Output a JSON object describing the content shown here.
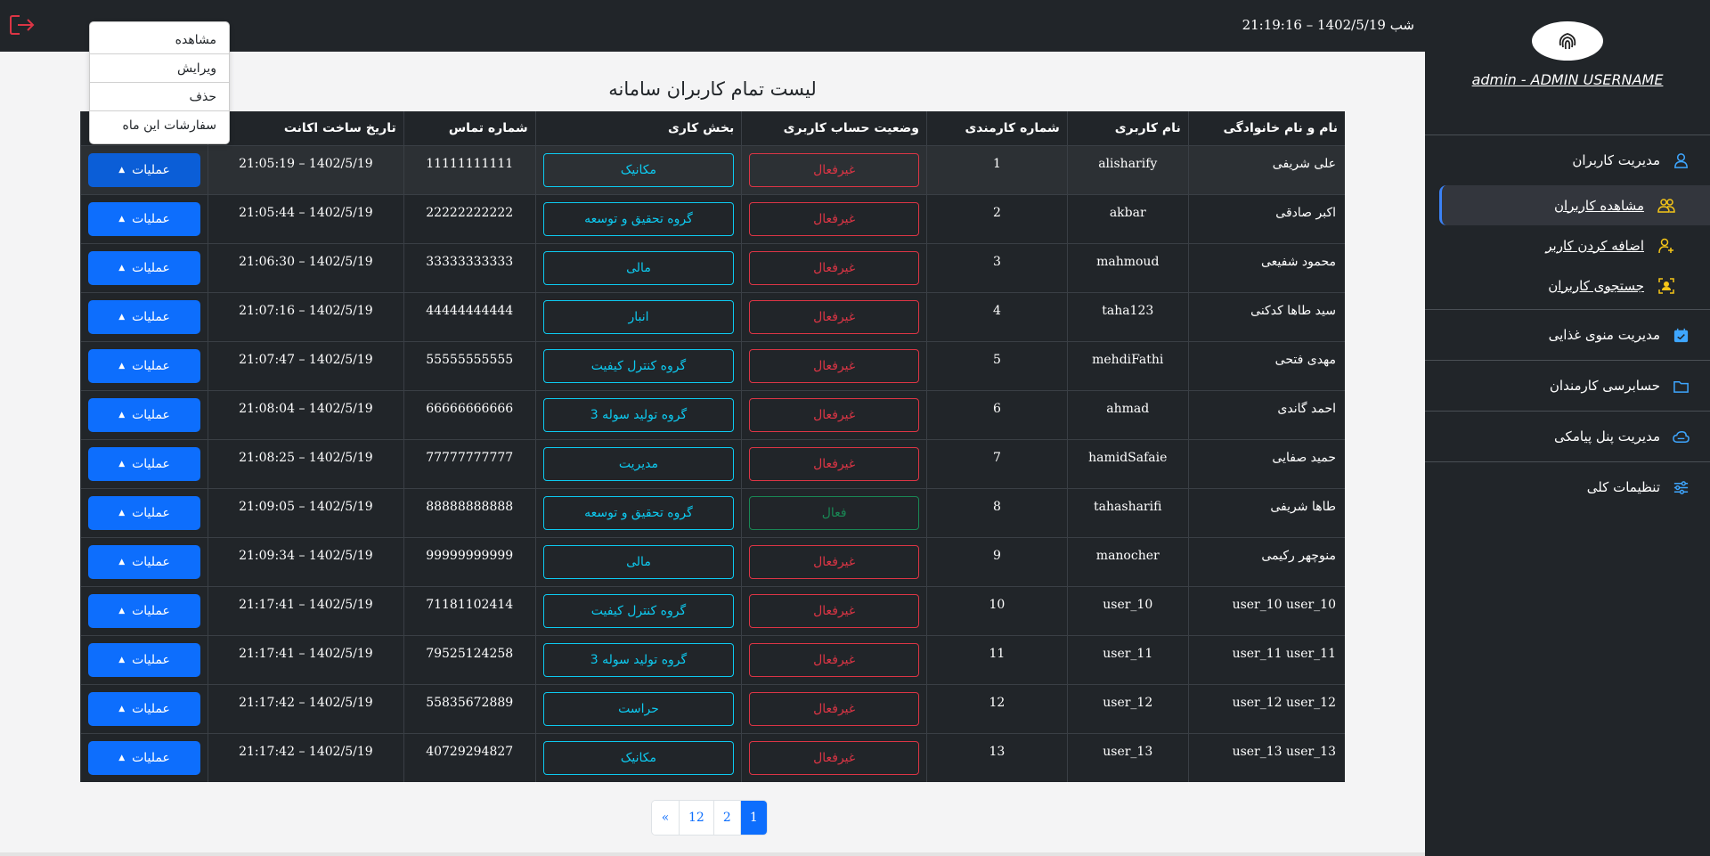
{
  "header": {
    "datetime": "شب 1402/5/19 – 21:19:16"
  },
  "profile": {
    "username": "admin - ADMIN USERNAME"
  },
  "sidebar": {
    "user_management": "مدیریت کاربران",
    "sub_items": [
      {
        "label": "مشاهده کاربران"
      },
      {
        "label": "اضافه کردن کاربر"
      },
      {
        "label": "جستجوی کاربران"
      }
    ],
    "food_menu": "مدیریت منوی غذایی",
    "audit": "حسابرسی کارمندان",
    "sms_panel": "مدیریت پنل پیامکی",
    "settings": "تنظیمات کلی"
  },
  "dropdown": {
    "items": [
      "مشاهده",
      "ویرایش",
      "حذف",
      "سفارشات این ماه"
    ]
  },
  "page_title": "لیست تمام کاربران سامانه",
  "table": {
    "headers": {
      "name": "نام و نام خانوادگی",
      "username": "نام کاربری",
      "emp_no": "شماره کارمندی",
      "status": "وضعیت حساب کاربری",
      "dept": "بخش کاری",
      "phone": "شماره تماس",
      "created": "تاریخ ساخت اکانت"
    },
    "ops_label": "عملیات",
    "rows": [
      {
        "name": "علی شریفی",
        "username": "alisharify",
        "emp_no": "1",
        "status": "غیرفعال",
        "dept": "مکانیک",
        "phone": "11111111111",
        "created": "1402/5/19 – 21:05:19"
      },
      {
        "name": "اکبر صادقی",
        "username": "akbar",
        "emp_no": "2",
        "status": "غیرفعال",
        "dept": "گروه تحقیق و توسعه",
        "phone": "22222222222",
        "created": "1402/5/19 – 21:05:44"
      },
      {
        "name": "محمود شفیعی",
        "username": "mahmoud",
        "emp_no": "3",
        "status": "غیرفعال",
        "dept": "مالی",
        "phone": "33333333333",
        "created": "1402/5/19 – 21:06:30"
      },
      {
        "name": "سید طاها کدکنی",
        "username": "taha123",
        "emp_no": "4",
        "status": "غیرفعال",
        "dept": "انبار",
        "phone": "44444444444",
        "created": "1402/5/19 – 21:07:16"
      },
      {
        "name": "مهدی فتحی",
        "username": "mehdiFathi",
        "emp_no": "5",
        "status": "غیرفعال",
        "dept": "گروه کنترل کیفیت",
        "phone": "55555555555",
        "created": "1402/5/19 – 21:07:47"
      },
      {
        "name": "احمد گاندی",
        "username": "ahmad",
        "emp_no": "6",
        "status": "غیرفعال",
        "dept": "گروه تولید سوله 3",
        "phone": "66666666666",
        "created": "1402/5/19 – 21:08:04"
      },
      {
        "name": "حمید صفایی",
        "username": "hamidSafaie",
        "emp_no": "7",
        "status": "غیرفعال",
        "dept": "مدیریت",
        "phone": "77777777777",
        "created": "1402/5/19 – 21:08:25"
      },
      {
        "name": "طاها شریفی",
        "username": "tahasharifi",
        "emp_no": "8",
        "status": "فعال",
        "dept": "گروه تحقیق و توسعه",
        "phone": "88888888888",
        "created": "1402/5/19 – 21:09:05"
      },
      {
        "name": "منوچهر رکیمی",
        "username": "manocher",
        "emp_no": "9",
        "status": "غیرفعال",
        "dept": "مالی",
        "phone": "99999999999",
        "created": "1402/5/19 – 21:09:34"
      },
      {
        "name": "user_10 user_10",
        "username": "user_10",
        "emp_no": "10",
        "status": "غیرفعال",
        "dept": "گروه کنترل کیفیت",
        "phone": "71181102414",
        "created": "1402/5/19 – 21:17:41"
      },
      {
        "name": "user_11 user_11",
        "username": "user_11",
        "emp_no": "11",
        "status": "غیرفعال",
        "dept": "گروه تولید سوله 3",
        "phone": "79525124258",
        "created": "1402/5/19 – 21:17:41"
      },
      {
        "name": "user_12 user_12",
        "username": "user_12",
        "emp_no": "12",
        "status": "غیرفعال",
        "dept": "حراست",
        "phone": "55835672889",
        "created": "1402/5/19 – 21:17:42"
      },
      {
        "name": "user_13 user_13",
        "username": "user_13",
        "emp_no": "13",
        "status": "غیرفعال",
        "dept": "مکانیک",
        "phone": "40729294827",
        "created": "1402/5/19 – 21:17:42"
      }
    ]
  },
  "pagination": {
    "pages": [
      "«",
      "12",
      "2",
      "1"
    ],
    "current": "1"
  },
  "colors": {
    "primary": "#0d6efd",
    "danger": "#dc3545",
    "success": "#198754",
    "info": "#0dcaf0",
    "dark": "#212529",
    "accent_icon": "#f5c518",
    "sidebar_icon": "#3ea6ff"
  }
}
